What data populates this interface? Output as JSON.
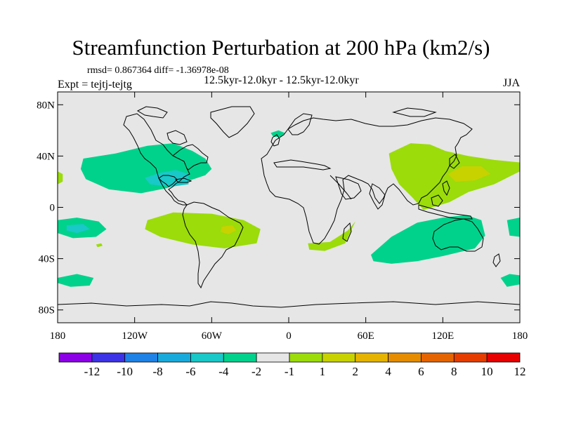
{
  "title": "Streamfunction Perturbation at 200 hPa (km2/s)",
  "stats_line": "rmsd= 0.867364 diff= -1.36978e-08",
  "period_label": "12.5kyr-12.0kyr - 12.5kyr-12.0kyr",
  "experiment_label": "Expt = tejtj-tejtg",
  "season_label": "JJA",
  "map": {
    "projection": "cylindrical equidistant",
    "lat_range": [
      -90,
      90
    ],
    "lon_range": [
      -180,
      180
    ],
    "background_color": "#e6e6e6",
    "coastline_color": "#000000",
    "lat_ticks": [
      {
        "value": 80,
        "label": "80N"
      },
      {
        "value": 40,
        "label": "40N"
      },
      {
        "value": 0,
        "label": "0"
      },
      {
        "value": -40,
        "label": "40S"
      },
      {
        "value": -80,
        "label": "80S"
      }
    ],
    "lon_ticks": [
      {
        "value": -180,
        "label": "180"
      },
      {
        "value": -120,
        "label": "120W"
      },
      {
        "value": -60,
        "label": "60W"
      },
      {
        "value": 0,
        "label": "0"
      },
      {
        "value": 60,
        "label": "60E"
      },
      {
        "value": 120,
        "label": "120E"
      },
      {
        "value": 180,
        "label": "180"
      }
    ],
    "anomaly_regions": [
      {
        "name": "north-atlantic-negative",
        "level": "-2 to -1",
        "color": "#00d28c",
        "poly": [
          [
            -160,
            38
          ],
          [
            -135,
            42
          ],
          [
            -110,
            48
          ],
          [
            -90,
            50
          ],
          [
            -75,
            44
          ],
          [
            -65,
            38
          ],
          [
            -60,
            30
          ],
          [
            -65,
            25
          ],
          [
            -80,
            20
          ],
          [
            -95,
            15
          ],
          [
            -115,
            11
          ],
          [
            -140,
            14
          ],
          [
            -158,
            22
          ],
          [
            -162,
            30
          ]
        ]
      },
      {
        "name": "gulf-of-mexico-negative",
        "level": "-4 to -2",
        "color": "#19c8c8",
        "poly": [
          [
            -112,
            23
          ],
          [
            -100,
            27
          ],
          [
            -88,
            29
          ],
          [
            -78,
            26
          ],
          [
            -78,
            18
          ],
          [
            -92,
            16
          ],
          [
            -108,
            18
          ]
        ]
      },
      {
        "name": "east-pacific-negative",
        "level": "-2 to -1",
        "color": "#00d28c",
        "poly": [
          [
            -180,
            -10
          ],
          [
            -165,
            -8
          ],
          [
            -148,
            -11
          ],
          [
            -142,
            -17
          ],
          [
            -150,
            -23
          ],
          [
            -168,
            -24
          ],
          [
            -180,
            -20
          ]
        ]
      },
      {
        "name": "central-pacific-negative",
        "level": "-4 to -2",
        "color": "#19c8c8",
        "poly": [
          [
            -173,
            -14
          ],
          [
            -160,
            -13
          ],
          [
            -155,
            -17
          ],
          [
            -165,
            -20
          ],
          [
            -173,
            -18
          ]
        ]
      },
      {
        "name": "south-pacific-negative",
        "level": "-2 to -1",
        "color": "#00d28c",
        "poly": [
          [
            -180,
            -55
          ],
          [
            -165,
            -52
          ],
          [
            -152,
            -55
          ],
          [
            -155,
            -61
          ],
          [
            -170,
            -62
          ],
          [
            -180,
            -59
          ]
        ]
      },
      {
        "name": "north-atlantic-small-negative",
        "level": "-2 to -1",
        "color": "#00d28c",
        "poly": [
          [
            -14,
            58
          ],
          [
            -8,
            60
          ],
          [
            -3,
            58
          ],
          [
            -6,
            55
          ],
          [
            -12,
            55
          ]
        ]
      },
      {
        "name": "indian-ocean-negative",
        "level": "-2 to -1",
        "color": "#00d28c",
        "poly": [
          [
            64,
            -37
          ],
          [
            80,
            -23
          ],
          [
            100,
            -12
          ],
          [
            120,
            -8
          ],
          [
            138,
            -6
          ],
          [
            150,
            -10
          ],
          [
            153,
            -22
          ],
          [
            145,
            -32
          ],
          [
            120,
            -38
          ],
          [
            100,
            -42
          ],
          [
            80,
            -44
          ],
          [
            66,
            -42
          ]
        ]
      },
      {
        "name": "far-east-pacific-negative",
        "level": "-2 to -1",
        "color": "#00d28c",
        "poly": [
          [
            165,
            -55
          ],
          [
            172,
            -52
          ],
          [
            180,
            -53
          ],
          [
            180,
            -60
          ],
          [
            170,
            -62
          ]
        ]
      },
      {
        "name": "east-edge-negative",
        "level": "-2 to -1",
        "color": "#00d28c",
        "poly": [
          [
            170,
            -10
          ],
          [
            180,
            -8
          ],
          [
            180,
            -23
          ],
          [
            172,
            -22
          ]
        ]
      },
      {
        "name": "south-atlantic-positive",
        "level": "1 to 2",
        "color": "#9bdc0a",
        "poly": [
          [
            -110,
            -10
          ],
          [
            -90,
            -4
          ],
          [
            -60,
            -5
          ],
          [
            -35,
            -10
          ],
          [
            -22,
            -17
          ],
          [
            -25,
            -28
          ],
          [
            -50,
            -32
          ],
          [
            -75,
            -29
          ],
          [
            -100,
            -23
          ],
          [
            -112,
            -17
          ]
        ]
      },
      {
        "name": "south-africa-positive",
        "level": "1 to 2",
        "color": "#9bdc0a",
        "poly": [
          [
            15,
            -28
          ],
          [
            32,
            -27
          ],
          [
            46,
            -18
          ],
          [
            52,
            -11
          ],
          [
            49,
            -17
          ],
          [
            44,
            -28
          ],
          [
            28,
            -34
          ],
          [
            16,
            -33
          ]
        ]
      },
      {
        "name": "east-asia-positive",
        "level": "1 to 2",
        "color": "#9bdc0a",
        "poly": [
          [
            78,
            42
          ],
          [
            95,
            50
          ],
          [
            110,
            49
          ],
          [
            122,
            44
          ],
          [
            140,
            40
          ],
          [
            160,
            37
          ],
          [
            180,
            35
          ],
          [
            180,
            28
          ],
          [
            160,
            18
          ],
          [
            140,
            12
          ],
          [
            125,
            4
          ],
          [
            105,
            -2
          ],
          [
            96,
            8
          ],
          [
            86,
            18
          ],
          [
            80,
            30
          ]
        ]
      },
      {
        "name": "west-pacific-positive",
        "level": "2 to 4",
        "color": "#c8d200",
        "poly": [
          [
            124,
            26
          ],
          [
            135,
            32
          ],
          [
            150,
            32
          ],
          [
            157,
            26
          ],
          [
            145,
            21
          ],
          [
            130,
            20
          ]
        ]
      },
      {
        "name": "west-edge-positive",
        "level": "1 to 2",
        "color": "#9bdc0a",
        "poly": [
          [
            -180,
            28
          ],
          [
            -176,
            26
          ],
          [
            -176,
            20
          ],
          [
            -180,
            18
          ]
        ]
      },
      {
        "name": "atlantic-small-positive",
        "level": "2 to 4",
        "color": "#c8d200",
        "poly": [
          [
            -52,
            -15
          ],
          [
            -44,
            -14
          ],
          [
            -41,
            -18
          ],
          [
            -47,
            -21
          ],
          [
            -53,
            -19
          ]
        ]
      },
      {
        "name": "pacific-dot-positive",
        "level": "1 to 2",
        "color": "#9bdc0a",
        "poly": [
          [
            -150,
            -29
          ],
          [
            -146,
            -28
          ],
          [
            -145,
            -30
          ],
          [
            -149,
            -31
          ]
        ]
      }
    ]
  },
  "colorbar": {
    "colors": [
      "#8c00e6",
      "#3c32e6",
      "#1e82e6",
      "#19aadc",
      "#19c8c8",
      "#00d28c",
      "#e6e6e6",
      "#9bdc0a",
      "#c8d200",
      "#e6b400",
      "#e68c00",
      "#e66400",
      "#e63c00",
      "#e60000"
    ],
    "labels": [
      "-12",
      "-10",
      "-8",
      "-6",
      "-4",
      "-2",
      "-1",
      "1",
      "2",
      "4",
      "6",
      "8",
      "10",
      "12"
    ]
  }
}
